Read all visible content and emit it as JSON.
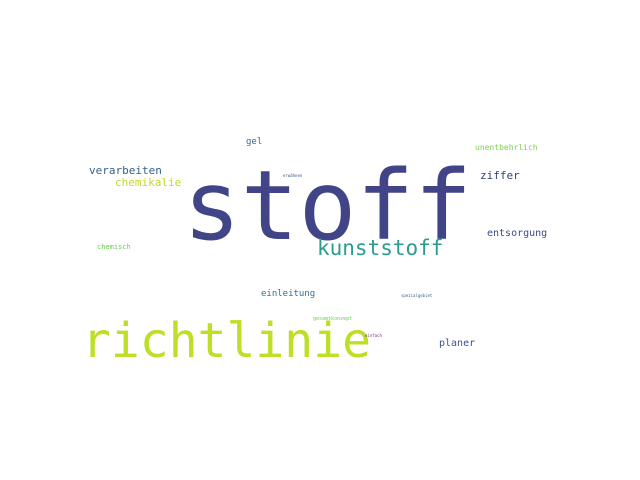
{
  "words": {
    "stoff": {
      "text": "stoff",
      "color": "#414487"
    },
    "richtlinie": {
      "text": "richtlinie",
      "color": "#bddf26"
    },
    "kunststoff": {
      "text": "kunststoff",
      "color": "#2a9d8f"
    },
    "verarbeiten": {
      "text": "verarbeiten",
      "color": "#355f8d"
    },
    "chemikalie": {
      "text": "chemikalie",
      "color": "#c5d826"
    },
    "ziffer": {
      "text": "ziffer",
      "color": "#2f3f79"
    },
    "entsorgung": {
      "text": "entsorgung",
      "color": "#3e4a89"
    },
    "planer": {
      "text": "planer",
      "color": "#3b528b"
    },
    "gel": {
      "text": "gel",
      "color": "#31688e"
    },
    "einleitung": {
      "text": "einleitung",
      "color": "#2c728e"
    },
    "unentbehrlich": {
      "text": "unentbehrlich",
      "color": "#7ad151"
    },
    "chemisch": {
      "text": "chemisch",
      "color": "#6ccd5a"
    },
    "gesamtkonzept": {
      "text": "gesamtkonzept",
      "color": "#6ccd5a"
    },
    "spezialgebiet": {
      "text": "spezialgebiet",
      "color": "#355f8d"
    },
    "erwaehnen": {
      "text": "erwähnen",
      "color": "#3b528b"
    },
    "einfach": {
      "text": "einfach",
      "color": "#6a2c85"
    }
  }
}
